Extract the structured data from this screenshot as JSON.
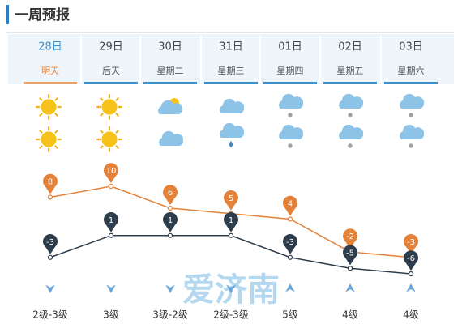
{
  "header": {
    "title": "一周预报"
  },
  "days": [
    {
      "date": "28日",
      "label": "明天"
    },
    {
      "date": "29日",
      "label": "后天"
    },
    {
      "date": "30日",
      "label": "星期二"
    },
    {
      "date": "31日",
      "label": "星期三"
    },
    {
      "date": "01日",
      "label": "星期四"
    },
    {
      "date": "02日",
      "label": "星期五"
    },
    {
      "date": "03日",
      "label": "星期六"
    }
  ],
  "chart_data": {
    "type": "line",
    "series": [
      {
        "color": "#e4823a",
        "values": [
          8,
          10,
          6,
          5,
          4,
          -2,
          -3
        ]
      },
      {
        "color": "#2e3d4c",
        "values": [
          -3,
          1,
          1,
          1,
          -3,
          -5,
          -6
        ]
      }
    ]
  },
  "wind": [
    "2级-3级",
    "3级",
    "3级-2级",
    "2级-3级",
    "5级",
    "4级",
    "4级"
  ],
  "watermark": "爱济南"
}
